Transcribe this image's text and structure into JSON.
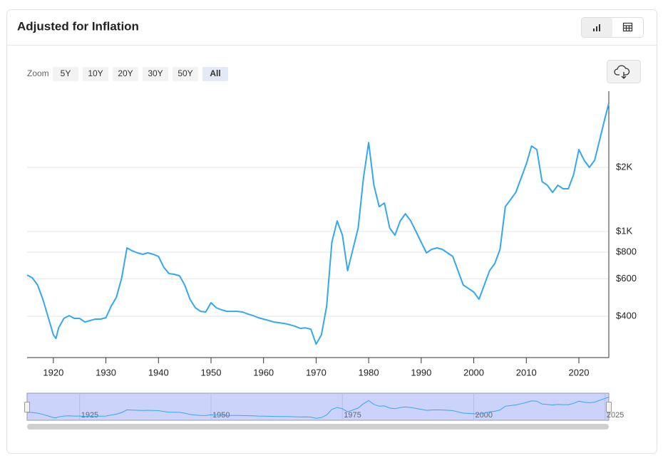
{
  "header": {
    "title": "Adjusted for Inflation"
  },
  "zoom": {
    "label": "Zoom",
    "buttons": [
      "5Y",
      "10Y",
      "20Y",
      "30Y",
      "50Y",
      "All"
    ],
    "active": 5
  },
  "chart_data": {
    "type": "line",
    "yscale": "log",
    "grid": true,
    "color": "#33a8f0",
    "x": [
      1915,
      1916,
      1917,
      1918,
      1919,
      1920,
      1920.5,
      1921,
      1922,
      1923,
      1924,
      1925,
      1926,
      1927,
      1928,
      1929,
      1930,
      1931,
      1932,
      1933,
      1934,
      1935,
      1936,
      1937,
      1938,
      1939,
      1940,
      1941,
      1942,
      1943,
      1944,
      1945,
      1946,
      1947,
      1948,
      1949,
      1950,
      1951,
      1952,
      1953,
      1954,
      1955,
      1956,
      1957,
      1958,
      1959,
      1960,
      1961,
      1962,
      1963,
      1964,
      1965,
      1966,
      1967,
      1968,
      1969,
      1970,
      1971,
      1972,
      1973,
      1974,
      1975,
      1976,
      1977,
      1978,
      1979,
      1980,
      1981,
      1982,
      1983,
      1984,
      1985,
      1986,
      1987,
      1988,
      1989,
      1990,
      1991,
      1992,
      1993,
      1994,
      1995,
      1996,
      1997,
      1998,
      1999,
      2000,
      2001,
      2002,
      2003,
      2004,
      2005,
      2006,
      2007,
      2008,
      2009,
      2010,
      2011,
      2012,
      2013,
      2014,
      2015,
      2016,
      2017,
      2018,
      2019,
      2020,
      2021,
      2022,
      2023,
      2024,
      2025,
      2025.7
    ],
    "values": [
      625,
      606,
      561,
      481,
      397,
      327,
      315,
      353,
      391,
      403,
      391,
      391,
      376,
      382,
      388,
      388,
      394,
      446,
      492,
      606,
      838,
      812,
      794,
      782,
      794,
      782,
      764,
      680,
      635,
      630,
      620,
      561,
      481,
      439,
      422,
      419,
      463,
      439,
      429,
      422,
      422,
      422,
      419,
      410,
      403,
      394,
      388,
      382,
      376,
      373,
      370,
      365,
      359,
      351,
      353,
      348,
      296,
      327,
      446,
      891,
      1122,
      962,
      655,
      825,
      1039,
      1781,
      2617,
      1649,
      1309,
      1360,
      1039,
      962,
      1122,
      1212,
      1122,
      1000,
      891,
      794,
      825,
      838,
      825,
      794,
      764,
      655,
      561,
      540,
      520,
      481,
      561,
      655,
      707,
      825,
      1309,
      1413,
      1527,
      1781,
      2077,
      2521,
      2427,
      1715,
      1649,
      1527,
      1649,
      1588,
      1588,
      1850,
      2427,
      2160,
      2000,
      2160,
      2719,
      3430,
      4000
    ],
    "xlim": [
      1915,
      2025.7
    ],
    "xticks": [
      1920,
      1930,
      1940,
      1950,
      1960,
      1970,
      1980,
      1990,
      2000,
      2010,
      2020
    ],
    "ylim": [
      256,
      4560
    ],
    "yticks": [
      {
        "value": 400,
        "label": "$400"
      },
      {
        "value": 600,
        "label": "$600"
      },
      {
        "value": 800,
        "label": "$800"
      },
      {
        "value": 1000,
        "label": "$1K"
      },
      {
        "value": 2000,
        "label": "$2K"
      }
    ]
  },
  "navigator": {
    "ticks": [
      1925,
      1950,
      1975,
      2000,
      2025
    ]
  }
}
